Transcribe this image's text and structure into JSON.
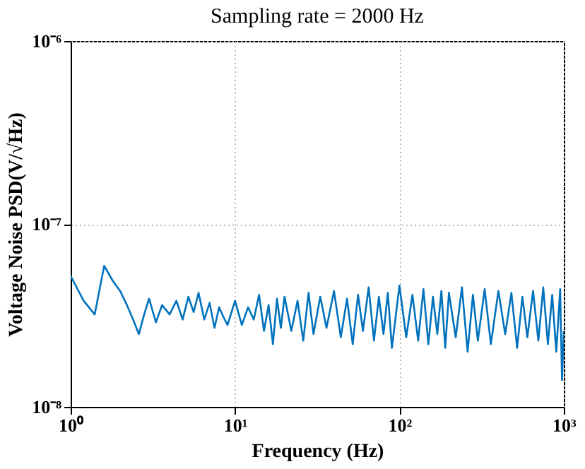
{
  "chart_data": {
    "type": "line",
    "title": "Sampling rate = 2000 Hz",
    "xlabel": "Frequency (Hz)",
    "ylabel": "Voltage Noise PSD(V/√Hz)",
    "log": "xy",
    "grid": true,
    "xlim": [
      1,
      1000
    ],
    "xticks": [
      {
        "value": 1,
        "label": "10⁰"
      },
      {
        "value": 10,
        "label": "10¹"
      },
      {
        "value": 100,
        "label": "10²"
      },
      {
        "value": 1000,
        "label": "10³"
      }
    ],
    "ylim": [
      1e-08,
      1e-06
    ],
    "yticks": [
      {
        "value": 1e-08,
        "label": "10⁻⁸"
      },
      {
        "value": 1e-07,
        "label": "10⁻⁷"
      },
      {
        "value": 1e-06,
        "label": "10⁻⁶"
      }
    ],
    "series": [
      {
        "color": "#0072bd",
        "x": [
          1,
          1.2,
          1.4,
          1.6,
          1.8,
          2,
          2.2,
          2.4,
          2.6,
          2.8,
          3,
          3.3,
          3.6,
          4,
          4.4,
          4.8,
          5.2,
          5.6,
          6,
          6.5,
          7,
          7.5,
          8,
          8.5,
          9,
          10,
          11,
          12,
          13,
          14,
          15,
          16,
          17,
          18,
          19,
          20,
          22,
          24,
          26,
          28,
          30,
          33,
          36,
          40,
          44,
          48,
          52,
          56,
          60,
          65,
          70,
          75,
          80,
          85,
          90,
          100,
          110,
          120,
          130,
          140,
          150,
          160,
          170,
          180,
          190,
          200,
          220,
          240,
          260,
          280,
          300,
          330,
          360,
          400,
          440,
          480,
          520,
          560,
          600,
          650,
          700,
          750,
          800,
          850,
          900,
          950,
          975,
          1000
        ],
        "values": [
          5.2e-08,
          3.8e-08,
          3.2e-08,
          5.9e-08,
          4.9e-08,
          4.3e-08,
          3.6e-08,
          3e-08,
          2.5e-08,
          3.2e-08,
          3.9e-08,
          2.9e-08,
          3.6e-08,
          3.2e-08,
          3.8e-08,
          3e-08,
          4e-08,
          3.3e-08,
          4.2e-08,
          3e-08,
          3.7e-08,
          2.7e-08,
          3.5e-08,
          3.1e-08,
          2.8e-08,
          3.8e-08,
          2.8e-08,
          3.5e-08,
          3e-08,
          4.1e-08,
          2.6e-08,
          3.6e-08,
          2.2e-08,
          3.9e-08,
          2.7e-08,
          4e-08,
          2.6e-08,
          3.8e-08,
          2.3e-08,
          4.2e-08,
          2.5e-08,
          4e-08,
          2.7e-08,
          4.3e-08,
          2.4e-08,
          3.9e-08,
          2.2e-08,
          4.1e-08,
          2.6e-08,
          4.5e-08,
          2.3e-08,
          4e-08,
          2.5e-08,
          4.2e-08,
          2.1e-08,
          4.6e-08,
          2.4e-08,
          4.1e-08,
          2.3e-08,
          4.4e-08,
          2.2e-08,
          4e-08,
          2.5e-08,
          4.3e-08,
          2.1e-08,
          4.2e-08,
          2.4e-08,
          4.5e-08,
          2e-08,
          4.1e-08,
          2.3e-08,
          4.4e-08,
          2.2e-08,
          4.3e-08,
          2.5e-08,
          4.2e-08,
          2.1e-08,
          4e-08,
          2.4e-08,
          4.3e-08,
          2.3e-08,
          4.5e-08,
          2.2e-08,
          4.1e-08,
          2e-08,
          4.4e-08,
          1.4e-08,
          2.6e-08
        ]
      }
    ]
  }
}
